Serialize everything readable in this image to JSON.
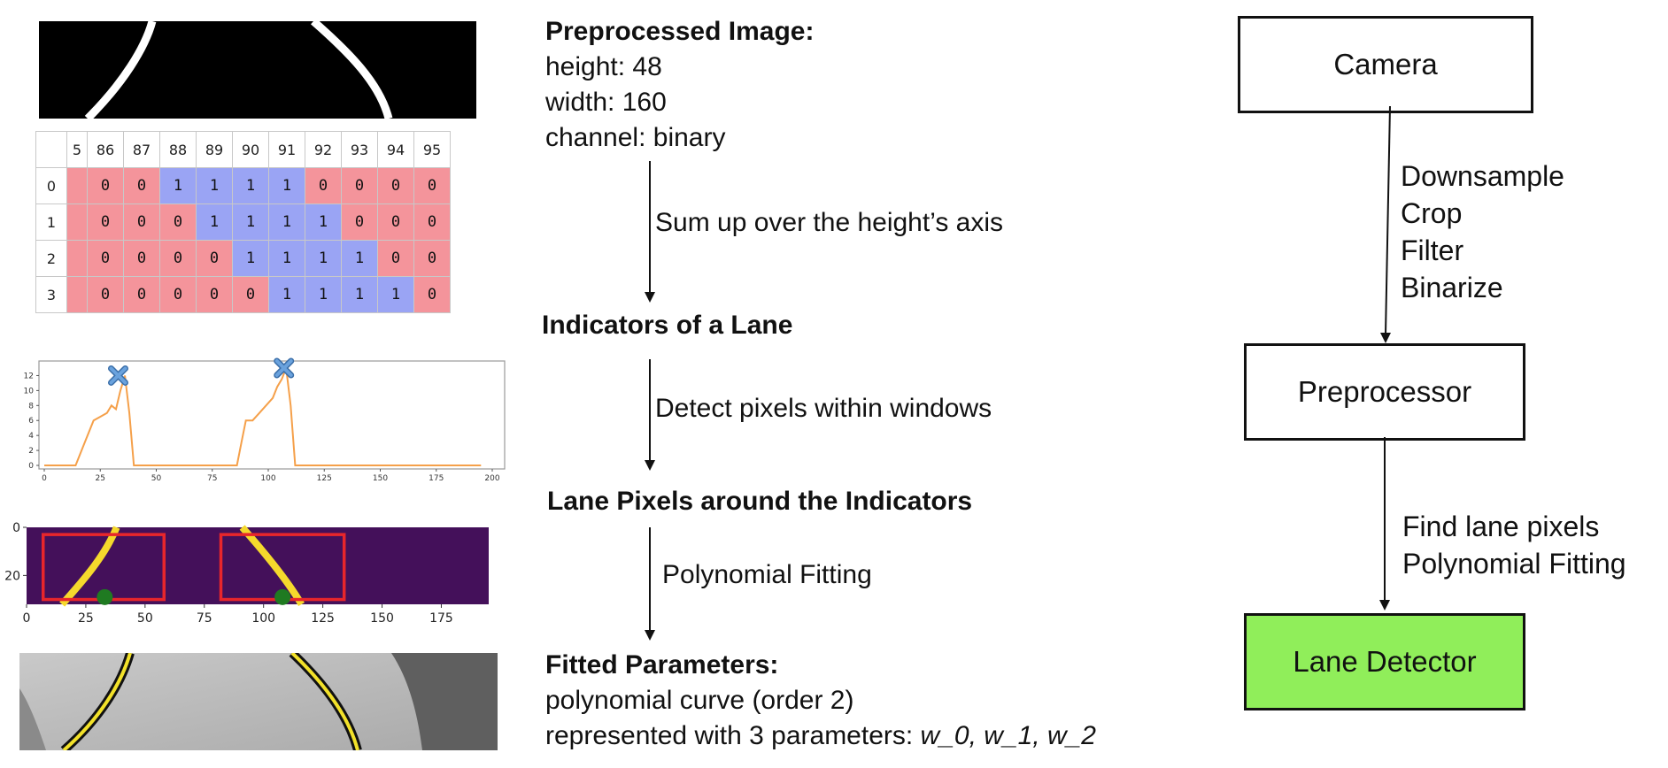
{
  "left_panel": {
    "table": {
      "col_headers": [
        "5",
        "86",
        "87",
        "88",
        "89",
        "90",
        "91",
        "92",
        "93",
        "94",
        "95"
      ],
      "rows": [
        {
          "label": "0",
          "cells": [
            "0",
            "0",
            "1",
            "1",
            "1",
            "1",
            "0",
            "0",
            "0",
            "0"
          ]
        },
        {
          "label": "1",
          "cells": [
            "0",
            "0",
            "0",
            "1",
            "1",
            "1",
            "1",
            "0",
            "0",
            "0"
          ]
        },
        {
          "label": "2",
          "cells": [
            "0",
            "0",
            "0",
            "0",
            "1",
            "1",
            "1",
            "1",
            "0",
            "0"
          ]
        },
        {
          "label": "3",
          "cells": [
            "0",
            "0",
            "0",
            "0",
            "0",
            "1",
            "1",
            "1",
            "1",
            "0"
          ]
        }
      ]
    }
  },
  "chart_data": [
    {
      "type": "line",
      "x": [
        0,
        5,
        10,
        14,
        18,
        22,
        25,
        28,
        30,
        32,
        34,
        36,
        38,
        40,
        60,
        80,
        86,
        88,
        90,
        93,
        96,
        99,
        102,
        104,
        106,
        108,
        110,
        112,
        118,
        150,
        175,
        195
      ],
      "y": [
        0,
        0,
        0,
        0,
        3,
        6,
        6.5,
        7,
        8,
        7.5,
        10,
        12,
        7,
        0,
        0,
        0,
        0,
        3,
        6,
        6,
        7,
        8,
        9,
        10.5,
        11.5,
        13,
        8,
        0,
        0,
        0,
        0,
        0
      ],
      "peaks": [
        {
          "x": 33,
          "y": 12
        },
        {
          "x": 107,
          "y": 13
        }
      ],
      "xlim": [
        0,
        200
      ],
      "ylim": [
        0,
        13
      ],
      "xticks": [
        "0",
        "25",
        "50",
        "75",
        "100",
        "125",
        "150",
        "175",
        "200"
      ],
      "yticks": [
        "0",
        "2",
        "4",
        "6",
        "8",
        "10",
        "12"
      ],
      "series_color": "#f5a04a",
      "marker_color": "#6aa2dd"
    },
    {
      "type": "heatmap",
      "xticks": [
        "0",
        "25",
        "50",
        "75",
        "100",
        "125",
        "150",
        "175"
      ],
      "yticks": [
        "0",
        "20"
      ],
      "xlim": [
        0,
        195
      ],
      "ylim": [
        0,
        32
      ],
      "windows": [
        {
          "x0": 7,
          "x1": 58,
          "y0": 3,
          "y1": 30
        },
        {
          "x0": 82,
          "x1": 134,
          "y0": 3,
          "y1": 30
        }
      ],
      "centers": [
        {
          "x": 33,
          "y": 29
        },
        {
          "x": 108,
          "y": 29
        }
      ],
      "background": "#44105a",
      "lane_color": "#f5d92c",
      "window_color": "#e8262b",
      "center_color": "#1f7a21"
    }
  ],
  "middle_flow": {
    "preprocessed": {
      "title": "Preprocessed Image:",
      "lines": [
        "height: 48",
        "width: 160",
        "channel: binary"
      ]
    },
    "step1": "Sum up over the height’s axis",
    "indicators_title": "Indicators of a Lane",
    "step2": "Detect  pixels within windows",
    "lane_pixels_title": "Lane Pixels around the Indicators",
    "step3": "Polynomial Fitting",
    "fitted": {
      "title": "Fitted Parameters:",
      "line1": "polynomial curve (order 2)",
      "line2_prefix": "represented with 3 parameters: ",
      "line2_params": "w_0, w_1, w_2"
    }
  },
  "right_flow": {
    "camera": "Camera",
    "steps_top": [
      "Downsample",
      "Crop",
      "Filter",
      "Binarize"
    ],
    "preprocessor": "Preprocessor",
    "steps_bottom": [
      "Find lane pixels",
      "Polynomial Fitting"
    ],
    "lane_detector": "Lane Detector",
    "lane_detector_color": "#90ee5a"
  }
}
